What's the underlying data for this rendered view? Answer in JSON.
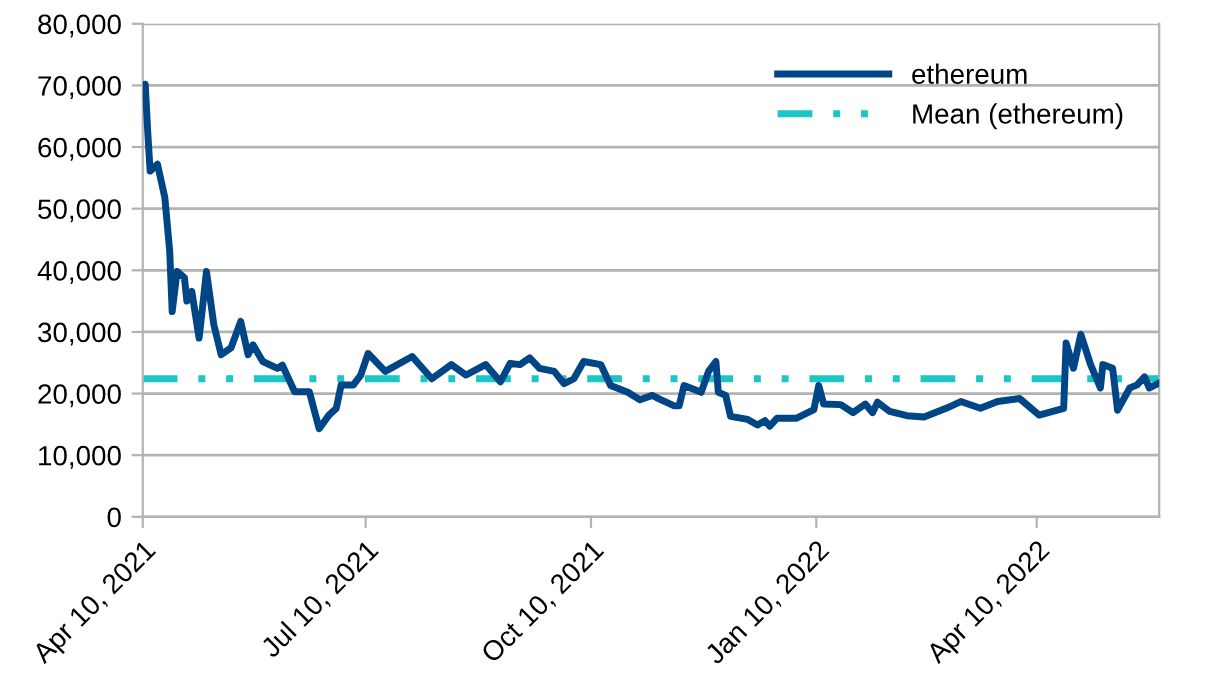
{
  "chart_data": {
    "type": "line",
    "x": [
      "2021-04-10",
      "2021-04-11",
      "2021-04-12",
      "2021-04-13",
      "2021-04-16",
      "2021-04-19",
      "2021-04-21",
      "2021-04-22",
      "2021-04-24",
      "2021-04-27",
      "2021-04-28",
      "2021-04-30",
      "2021-05-03",
      "2021-05-06",
      "2021-05-09",
      "2021-05-12",
      "2021-05-16",
      "2021-05-20",
      "2021-05-23",
      "2021-05-25",
      "2021-05-29",
      "2021-06-04",
      "2021-06-06",
      "2021-06-11",
      "2021-06-17",
      "2021-06-21",
      "2021-06-25",
      "2021-06-28",
      "2021-06-30",
      "2021-07-05",
      "2021-07-08",
      "2021-07-11",
      "2021-07-18",
      "2021-07-29",
      "2021-08-06",
      "2021-08-14",
      "2021-08-20",
      "2021-08-28",
      "2021-09-03",
      "2021-09-07",
      "2021-09-11",
      "2021-09-15",
      "2021-09-19",
      "2021-09-25",
      "2021-09-29",
      "2021-10-03",
      "2021-10-07",
      "2021-10-14",
      "2021-10-18",
      "2021-10-25",
      "2021-10-30",
      "2021-11-04",
      "2021-11-07",
      "2021-11-13",
      "2021-11-15",
      "2021-11-17",
      "2021-11-24",
      "2021-11-27",
      "2021-11-30",
      "2021-12-01",
      "2021-12-04",
      "2021-12-06",
      "2021-12-13",
      "2021-12-17",
      "2021-12-20",
      "2021-12-22",
      "2021-12-25",
      "2022-01-02",
      "2022-01-09",
      "2022-01-11",
      "2022-01-13",
      "2022-01-20",
      "2022-01-25",
      "2022-01-30",
      "2022-02-02",
      "2022-02-04",
      "2022-02-09",
      "2022-02-16",
      "2022-02-23",
      "2022-03-04",
      "2022-03-10",
      "2022-03-18",
      "2022-03-25",
      "2022-04-03",
      "2022-04-11",
      "2022-04-21",
      "2022-04-22",
      "2022-04-25",
      "2022-04-28",
      "2022-05-02",
      "2022-05-06",
      "2022-05-07",
      "2022-05-11",
      "2022-05-13",
      "2022-05-18",
      "2022-05-21",
      "2022-05-24",
      "2022-05-26",
      "2022-05-30"
    ],
    "series": [
      {
        "name": "ethereum",
        "color": "#004586",
        "values": [
          68100,
          70200,
          62600,
          56100,
          57200,
          51800,
          43100,
          33300,
          39800,
          38800,
          35000,
          36600,
          29000,
          39800,
          31200,
          26300,
          27400,
          31700,
          26300,
          27900,
          25200,
          24100,
          24600,
          20300,
          20300,
          14300,
          16500,
          17600,
          21400,
          21400,
          23000,
          26500,
          23600,
          26000,
          22400,
          24700,
          23000,
          24700,
          21900,
          24900,
          24700,
          25800,
          24100,
          23600,
          21600,
          22400,
          25200,
          24700,
          21300,
          20200,
          19000,
          19700,
          19100,
          18000,
          18000,
          21300,
          20200,
          23600,
          25200,
          20200,
          19700,
          16300,
          15800,
          14900,
          15600,
          14700,
          16000,
          16000,
          17400,
          21300,
          18300,
          18200,
          16900,
          18300,
          16900,
          18600,
          17100,
          16400,
          16200,
          17600,
          18700,
          17600,
          18700,
          19200,
          16500,
          17600,
          28200,
          24100,
          29600,
          24700,
          20900,
          24700,
          24100,
          17300,
          20900,
          21400,
          22700,
          20900,
          21700
        ]
      }
    ],
    "ref_lines": [
      {
        "axis": "y",
        "value": 22400,
        "label": "Mean (ethereum)",
        "color": "#1ac6c6",
        "line_style": "dashed"
      }
    ],
    "xlim": [
      "2021-04-10",
      "2022-05-30"
    ],
    "xticks": [
      {
        "value": "2021-04-10",
        "label": "Apr 10, 2021"
      },
      {
        "value": "2021-07-10",
        "label": "Jul 10, 2021"
      },
      {
        "value": "2021-10-10",
        "label": "Oct 10, 2021"
      },
      {
        "value": "2022-01-10",
        "label": "Jan 10, 2022"
      },
      {
        "value": "2022-04-10",
        "label": "Apr 10, 2022"
      }
    ],
    "ylim": [
      0,
      80000
    ],
    "yticks": [
      {
        "value": 0,
        "label": "0"
      },
      {
        "value": 10000,
        "label": "10,000"
      },
      {
        "value": 20000,
        "label": "20,000"
      },
      {
        "value": 30000,
        "label": "30,000"
      },
      {
        "value": 40000,
        "label": "40,000"
      },
      {
        "value": 50000,
        "label": "50,000"
      },
      {
        "value": 60000,
        "label": "60,000"
      },
      {
        "value": 70000,
        "label": "70,000"
      },
      {
        "value": 80000,
        "label": "80,000"
      }
    ],
    "grid": "y",
    "legend": "top right",
    "marker": "none",
    "line_style": "solid"
  }
}
